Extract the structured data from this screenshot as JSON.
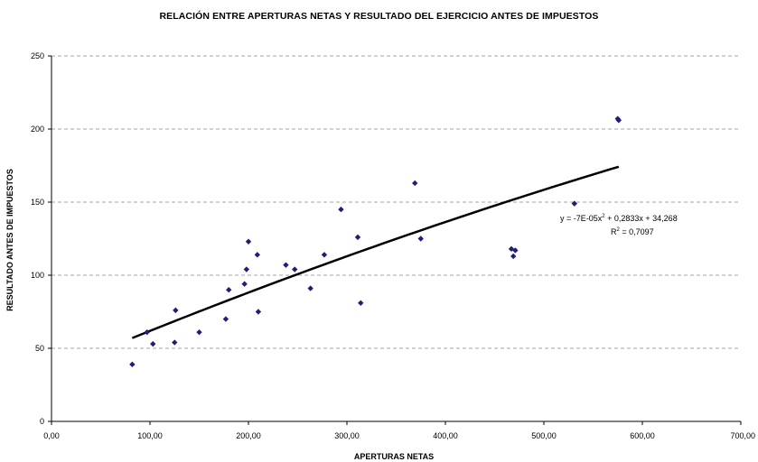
{
  "chart_data": {
    "type": "scatter",
    "title": "RELACIÓN ENTRE APERTURAS NETAS Y RESULTADO DEL EJERCICIO ANTES DE IMPUESTOS",
    "xlabel": "APERTURAS NETAS",
    "ylabel": "RESULTADO ANTES DE IMPUESTOS",
    "xlim": [
      0,
      700
    ],
    "ylim": [
      0,
      250
    ],
    "x_ticks": [
      0,
      100,
      200,
      300,
      400,
      500,
      600,
      700
    ],
    "x_tick_labels": [
      "0,00",
      "100,00",
      "200,00",
      "300,00",
      "400,00",
      "500,00",
      "600,00",
      "700,00"
    ],
    "y_ticks": [
      0,
      50,
      100,
      150,
      200,
      250
    ],
    "y_tick_labels": [
      "0",
      "50",
      "100",
      "150",
      "200",
      "250"
    ],
    "grid": "horizontal-dashed",
    "marker_color": "#1f1f7a",
    "points": [
      {
        "x": 82,
        "y": 39
      },
      {
        "x": 97,
        "y": 61
      },
      {
        "x": 103,
        "y": 53
      },
      {
        "x": 125,
        "y": 54
      },
      {
        "x": 126,
        "y": 76
      },
      {
        "x": 150,
        "y": 61
      },
      {
        "x": 177,
        "y": 70
      },
      {
        "x": 180,
        "y": 90
      },
      {
        "x": 196,
        "y": 94
      },
      {
        "x": 198,
        "y": 104
      },
      {
        "x": 200,
        "y": 123
      },
      {
        "x": 209,
        "y": 114
      },
      {
        "x": 210,
        "y": 75
      },
      {
        "x": 238,
        "y": 107
      },
      {
        "x": 247,
        "y": 104
      },
      {
        "x": 263,
        "y": 91
      },
      {
        "x": 277,
        "y": 114
      },
      {
        "x": 294,
        "y": 145
      },
      {
        "x": 311,
        "y": 126
      },
      {
        "x": 314,
        "y": 81
      },
      {
        "x": 369,
        "y": 163
      },
      {
        "x": 375,
        "y": 125
      },
      {
        "x": 467,
        "y": 118
      },
      {
        "x": 469,
        "y": 113
      },
      {
        "x": 471,
        "y": 117
      },
      {
        "x": 531,
        "y": 149
      },
      {
        "x": 575,
        "y": 207
      },
      {
        "x": 576,
        "y": 206
      }
    ],
    "trendline": {
      "type": "polynomial",
      "coefficients": {
        "a": -7e-05,
        "b": 0.2833,
        "c": 34.268
      },
      "x_range": [
        82,
        576
      ],
      "color": "#000000",
      "equation_prefix": "y = -7E-05x",
      "equation_sup": "2",
      "equation_suffix": " + 0,2833x + 34,268",
      "r2_prefix": "R",
      "r2_sup": "2",
      "r2_suffix": " = 0,7097"
    }
  }
}
